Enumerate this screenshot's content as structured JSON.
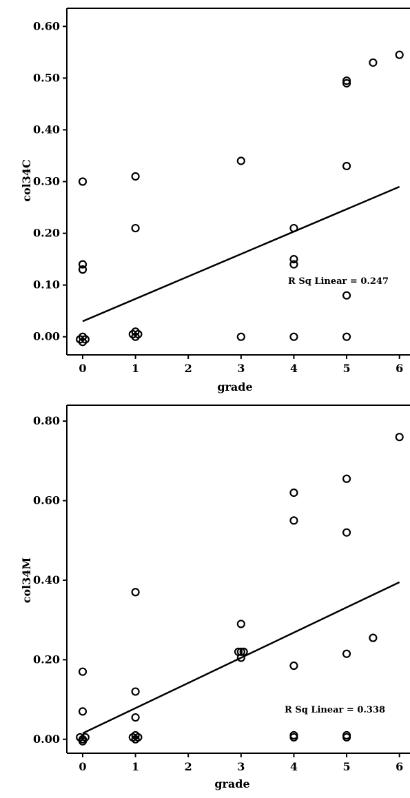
{
  "chart_data": [
    {
      "type": "scatter",
      "xlabel": "grade",
      "ylabel": "col34C",
      "xlim": [
        -0.3,
        6.2
      ],
      "ylim": [
        -0.035,
        0.635
      ],
      "xticks": [
        {
          "value": 0,
          "label": "0"
        },
        {
          "value": 1,
          "label": "1"
        },
        {
          "value": 2,
          "label": "2"
        },
        {
          "value": 3,
          "label": "3"
        },
        {
          "value": 4,
          "label": "4"
        },
        {
          "value": 5,
          "label": "5"
        },
        {
          "value": 6,
          "label": "6"
        }
      ],
      "yticks": [
        {
          "value": 0.0,
          "label": "0.00"
        },
        {
          "value": 0.1,
          "label": "0.10"
        },
        {
          "value": 0.2,
          "label": "0.20"
        },
        {
          "value": 0.3,
          "label": "0.30"
        },
        {
          "value": 0.4,
          "label": "0.40"
        },
        {
          "value": 0.5,
          "label": "0.50"
        },
        {
          "value": 0.6,
          "label": "0.60"
        }
      ],
      "points": [
        {
          "x": 0,
          "y": 0.3
        },
        {
          "x": 0,
          "y": 0.14
        },
        {
          "x": 0,
          "y": 0.13
        },
        {
          "x": 0,
          "y": 0.0
        },
        {
          "x": -0.05,
          "y": -0.005
        },
        {
          "x": 0.05,
          "y": -0.005
        },
        {
          "x": 0,
          "y": -0.01
        },
        {
          "x": 1,
          "y": 0.31
        },
        {
          "x": 1,
          "y": 0.21
        },
        {
          "x": 0.95,
          "y": 0.005
        },
        {
          "x": 1.05,
          "y": 0.005
        },
        {
          "x": 1,
          "y": 0.01
        },
        {
          "x": 1,
          "y": 0.0
        },
        {
          "x": 3,
          "y": 0.34
        },
        {
          "x": 3,
          "y": 0.0
        },
        {
          "x": 4,
          "y": 0.21
        },
        {
          "x": 4,
          "y": 0.15
        },
        {
          "x": 4,
          "y": 0.14
        },
        {
          "x": 4,
          "y": 0.0
        },
        {
          "x": 5,
          "y": 0.495
        },
        {
          "x": 5,
          "y": 0.49
        },
        {
          "x": 5,
          "y": 0.33
        },
        {
          "x": 5,
          "y": 0.08
        },
        {
          "x": 5,
          "y": 0.0
        },
        {
          "x": 5.5,
          "y": 0.53
        },
        {
          "x": 6,
          "y": 0.545
        }
      ],
      "fit_line": {
        "x": [
          0,
          6
        ],
        "y": [
          0.03,
          0.29
        ]
      },
      "annotation": "R Sq Linear = 0.247",
      "grid": false
    },
    {
      "type": "scatter",
      "xlabel": "grade",
      "ylabel": "col34M",
      "xlim": [
        -0.3,
        6.2
      ],
      "ylim": [
        -0.035,
        0.84
      ],
      "xticks": [
        {
          "value": 0,
          "label": "0"
        },
        {
          "value": 1,
          "label": "1"
        },
        {
          "value": 2,
          "label": "2"
        },
        {
          "value": 3,
          "label": "3"
        },
        {
          "value": 4,
          "label": "4"
        },
        {
          "value": 5,
          "label": "5"
        },
        {
          "value": 6,
          "label": "6"
        }
      ],
      "yticks": [
        {
          "value": 0.0,
          "label": "0.00"
        },
        {
          "value": 0.2,
          "label": "0.20"
        },
        {
          "value": 0.4,
          "label": "0.40"
        },
        {
          "value": 0.6,
          "label": "0.60"
        },
        {
          "value": 0.8,
          "label": "0.80"
        }
      ],
      "points": [
        {
          "x": 0,
          "y": 0.17
        },
        {
          "x": 0,
          "y": 0.07
        },
        {
          "x": 0,
          "y": 0.0
        },
        {
          "x": -0.05,
          "y": 0.005
        },
        {
          "x": 0.05,
          "y": 0.005
        },
        {
          "x": 0,
          "y": -0.005
        },
        {
          "x": 1,
          "y": 0.37
        },
        {
          "x": 1,
          "y": 0.12
        },
        {
          "x": 1,
          "y": 0.055
        },
        {
          "x": 0.95,
          "y": 0.005
        },
        {
          "x": 1.05,
          "y": 0.005
        },
        {
          "x": 1,
          "y": 0.0
        },
        {
          "x": 1,
          "y": 0.01
        },
        {
          "x": 3,
          "y": 0.29
        },
        {
          "x": 3,
          "y": 0.22
        },
        {
          "x": 3.05,
          "y": 0.22
        },
        {
          "x": 2.95,
          "y": 0.22
        },
        {
          "x": 3,
          "y": 0.205
        },
        {
          "x": 4,
          "y": 0.62
        },
        {
          "x": 4,
          "y": 0.55
        },
        {
          "x": 4,
          "y": 0.185
        },
        {
          "x": 4,
          "y": 0.01
        },
        {
          "x": 4,
          "y": 0.005
        },
        {
          "x": 5,
          "y": 0.655
        },
        {
          "x": 5,
          "y": 0.52
        },
        {
          "x": 5,
          "y": 0.215
        },
        {
          "x": 5,
          "y": 0.01
        },
        {
          "x": 5,
          "y": 0.005
        },
        {
          "x": 5.5,
          "y": 0.255
        },
        {
          "x": 6,
          "y": 0.76
        }
      ],
      "fit_line": {
        "x": [
          0,
          6
        ],
        "y": [
          0.015,
          0.395
        ]
      },
      "annotation": "R Sq Linear = 0.338",
      "grid": false
    }
  ]
}
